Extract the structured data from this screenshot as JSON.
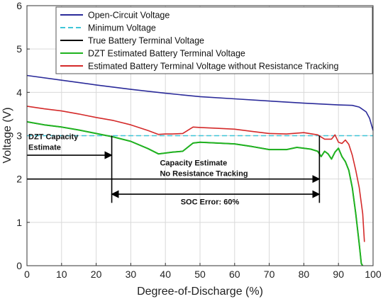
{
  "chart_data": {
    "type": "line",
    "xlabel": "Degree-of-Discharge (%)",
    "ylabel": "Voltage (V)",
    "xlim": [
      0,
      100
    ],
    "ylim": [
      0,
      6
    ],
    "xticks": [
      0,
      10,
      20,
      30,
      40,
      50,
      60,
      70,
      80,
      90,
      100
    ],
    "yticks": [
      0,
      1,
      2,
      3,
      4,
      5,
      6
    ],
    "grid": true,
    "legend_placement": "top-right",
    "series": [
      {
        "name": "Open-Circuit Voltage",
        "color": "#2b2b9a",
        "dash": "solid",
        "x": [
          0,
          10,
          20,
          30,
          40,
          50,
          60,
          70,
          80,
          90,
          94,
          96,
          98,
          99,
          100
        ],
        "y": [
          4.39,
          4.28,
          4.17,
          4.07,
          3.98,
          3.9,
          3.85,
          3.8,
          3.75,
          3.71,
          3.7,
          3.66,
          3.55,
          3.4,
          3.12
        ]
      },
      {
        "name": "Minimum Voltage",
        "color": "#3fc6d8",
        "dash": "dashed",
        "x": [
          0,
          100
        ],
        "y": [
          3.0,
          3.0
        ]
      },
      {
        "name": "True Battery Terminal Voltage",
        "color": "#000000",
        "dash": "solid",
        "x": [
          0,
          5,
          10,
          15,
          20,
          25,
          30,
          35,
          38,
          40,
          42,
          45,
          48,
          50,
          55,
          60,
          65,
          70,
          75,
          78,
          80,
          82,
          84,
          85,
          86,
          87,
          88,
          89,
          90,
          91,
          92,
          93,
          94,
          95,
          96,
          96.6,
          97
        ],
        "y": [
          3.32,
          3.25,
          3.2,
          3.13,
          3.05,
          2.97,
          2.87,
          2.7,
          2.58,
          2.6,
          2.62,
          2.64,
          2.83,
          2.85,
          2.83,
          2.81,
          2.75,
          2.68,
          2.68,
          2.73,
          2.71,
          2.69,
          2.64,
          2.52,
          2.64,
          2.58,
          2.46,
          2.62,
          2.71,
          2.52,
          2.4,
          2.2,
          1.8,
          1.2,
          0.5,
          0.05,
          0.0
        ]
      },
      {
        "name": "DZT Estimated Battery Terminal Voltage",
        "color": "#1fb31f",
        "dash": "solid",
        "x": [
          0,
          5,
          10,
          15,
          20,
          25,
          30,
          35,
          38,
          40,
          42,
          45,
          48,
          50,
          55,
          60,
          65,
          70,
          75,
          78,
          80,
          82,
          84,
          85,
          86,
          87,
          88,
          89,
          90,
          91,
          92,
          93,
          94,
          95,
          96,
          96.6,
          97
        ],
        "y": [
          3.32,
          3.25,
          3.2,
          3.13,
          3.05,
          2.97,
          2.87,
          2.7,
          2.58,
          2.6,
          2.62,
          2.64,
          2.83,
          2.85,
          2.83,
          2.81,
          2.75,
          2.68,
          2.68,
          2.73,
          2.71,
          2.69,
          2.64,
          2.52,
          2.64,
          2.58,
          2.46,
          2.62,
          2.71,
          2.52,
          2.4,
          2.2,
          1.8,
          1.2,
          0.5,
          0.05,
          0.0
        ]
      },
      {
        "name": "Estimated Battery Terminal Voltage without Resistance Tracking",
        "color": "#d42a2a",
        "dash": "solid",
        "x": [
          0,
          5,
          10,
          15,
          20,
          25,
          30,
          35,
          38,
          40,
          42,
          45,
          48,
          50,
          55,
          60,
          65,
          70,
          75,
          80,
          84,
          86,
          88,
          89,
          90,
          91,
          92,
          93,
          94,
          95,
          96,
          97,
          97.5
        ],
        "y": [
          3.68,
          3.62,
          3.57,
          3.5,
          3.42,
          3.35,
          3.25,
          3.12,
          3.03,
          3.04,
          3.04,
          3.05,
          3.2,
          3.19,
          3.17,
          3.15,
          3.1,
          3.05,
          3.04,
          3.07,
          3.02,
          2.92,
          2.92,
          3.02,
          2.85,
          2.82,
          2.9,
          2.8,
          2.55,
          2.2,
          1.8,
          1.2,
          0.55
        ]
      }
    ],
    "annotations": [
      {
        "text_lines": [
          "DZT Capacity",
          "Estimate"
        ],
        "x": 0,
        "y": 2.95
      },
      {
        "text_lines": [
          "Capacity Estimate",
          "No Resistance Tracking"
        ],
        "x": 38,
        "y": 2.35
      },
      {
        "text_lines": [
          "SOC Error: 60%"
        ],
        "x": 44,
        "y": 1.45
      }
    ],
    "arrows": [
      {
        "from": [
          0,
          2.55
        ],
        "to": [
          24.5,
          2.55
        ],
        "heads": "end"
      },
      {
        "from": [
          0,
          2.0
        ],
        "to": [
          84.5,
          2.0
        ],
        "heads": "end"
      },
      {
        "from": [
          24.5,
          1.65
        ],
        "to": [
          84.5,
          1.65
        ],
        "heads": "both"
      }
    ],
    "vlines": [
      {
        "x": 24.5,
        "y_from": 1.45,
        "y_to": 3.0
      },
      {
        "x": 84.5,
        "y_from": 1.45,
        "y_to": 3.0
      }
    ]
  }
}
